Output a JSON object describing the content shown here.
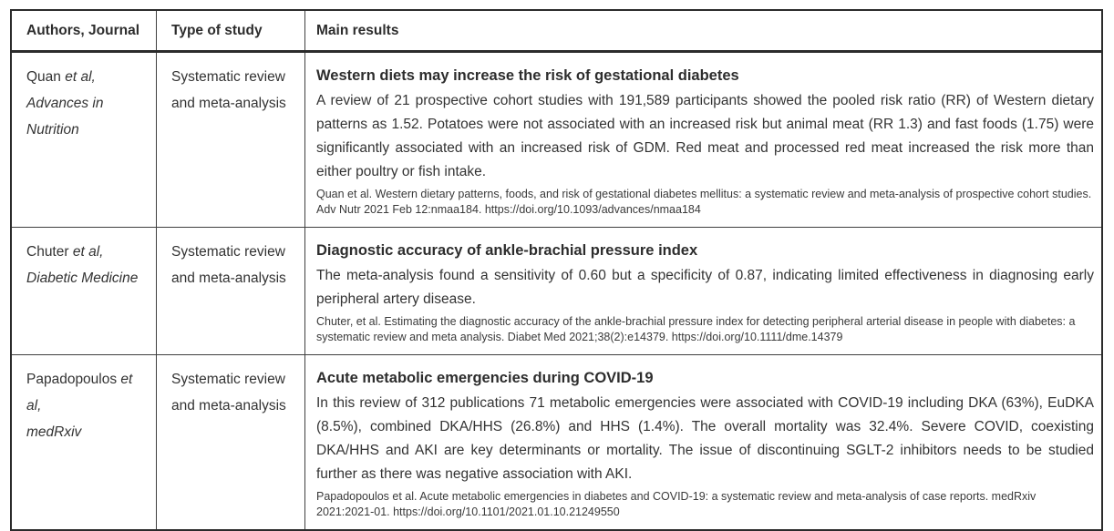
{
  "colors": {
    "table_border": "#2b2b2b",
    "grid_line": "#3f3f3f",
    "text": "#333333",
    "heading_text": "#2d2d2d",
    "background": "#ffffff"
  },
  "table": {
    "headers": [
      "Authors, Journal",
      "Type of study",
      "Main results"
    ],
    "rows": [
      {
        "author_segments": [
          {
            "text": "Quan ",
            "italic": false
          },
          {
            "text": "et al,",
            "italic": true
          }
        ],
        "journal": "Advances in Nutrition",
        "study_type": "Systematic review and meta-analysis",
        "result_title": "Western diets may increase the risk of gestational diabetes",
        "result_body": "A review of 21 prospective cohort studies with 191,589 participants showed the pooled risk ratio (RR) of Western dietary patterns as 1.52. Potatoes were not associated with an increased risk but animal meat (RR 1.3) and fast foods (1.75) were significantly associated with an increased risk of GDM. Red meat and processed red meat increased the risk more than either poultry or fish intake.",
        "citation": "Quan et al. Western dietary patterns, foods, and risk of gestational diabetes mellitus: a systematic review and meta-analysis of prospective cohort studies. Adv Nutr 2021 Feb 12:nmaa184. https://doi.org/10.1093/advances/nmaa184"
      },
      {
        "author_segments": [
          {
            "text": "Chuter ",
            "italic": false
          },
          {
            "text": "et al,",
            "italic": true
          }
        ],
        "journal": "Diabetic Medicine",
        "study_type": "Systematic review and meta-analysis",
        "result_title": "Diagnostic accuracy of ankle-brachial pressure index",
        "result_body": "The meta-analysis found a sensitivity of 0.60 but a specificity of 0.87, indicating limited effectiveness in diagnosing early peripheral artery disease.",
        "citation": "Chuter, et al. Estimating the diagnostic accuracy of the ankle-brachial pressure index for detecting peripheral arterial disease in people with diabetes: a systematic review and meta analysis. Diabet Med 2021;38(2):e14379. https://doi.org/10.1111/dme.14379"
      },
      {
        "author_segments": [
          {
            "text": "Papadopoulos ",
            "italic": false
          },
          {
            "text": "et al,",
            "italic": true
          }
        ],
        "journal": "medRxiv",
        "study_type": "Systematic review and meta-analysis",
        "result_title": "Acute metabolic emergencies during COVID-19",
        "result_body": "In this review of 312 publications 71 metabolic emergencies were associated with COVID-19 including DKA (63%), EuDKA (8.5%), combined DKA/HHS (26.8%) and HHS (1.4%). The overall mortality was 32.4%. Severe COVID, coexisting DKA/HHS and AKI are key determinants or mortality. The issue of discontinuing SGLT-2 inhibitors needs to be studied further as there was negative association with AKI.",
        "citation": "Papadopoulos et al. Acute metabolic emergencies in diabetes and COVID-19: a systematic review and meta-analysis of case reports. medRxiv 2021:2021-01. https://doi.org/10.1101/2021.01.10.21249550"
      }
    ]
  }
}
